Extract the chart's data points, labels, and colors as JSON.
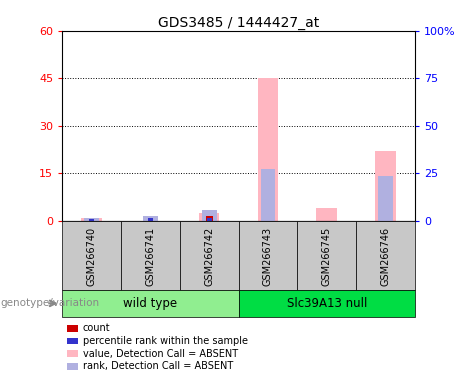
{
  "title": "GDS3485 / 1444427_at",
  "samples": [
    "GSM266740",
    "GSM266741",
    "GSM266742",
    "GSM266743",
    "GSM266745",
    "GSM266746"
  ],
  "group_labels": [
    "wild type",
    "Slc39A13 null"
  ],
  "group_colors": [
    "#90EE90",
    "#00DD44"
  ],
  "group_ranges": [
    [
      0,
      3
    ],
    [
      3,
      6
    ]
  ],
  "value_absent": [
    1.0,
    0.0,
    2.5,
    45.0,
    4.0,
    22.0
  ],
  "rank_absent": [
    1.0,
    1.5,
    3.5,
    16.5,
    0.0,
    14.0
  ],
  "count": [
    0.0,
    0.0,
    1.5,
    0.0,
    0.0,
    0.0
  ],
  "percentile": [
    0.5,
    1.0,
    1.0,
    0.0,
    0.0,
    0.0
  ],
  "left_ylim": [
    0,
    60
  ],
  "left_yticks": [
    0,
    15,
    30,
    45,
    60
  ],
  "right_ylim": [
    0,
    100
  ],
  "right_yticks": [
    0,
    25,
    50,
    75,
    100
  ],
  "color_count": "#cc0000",
  "color_percentile": "#3333cc",
  "color_value_absent": "#ffb6c1",
  "color_rank_absent": "#b0b0e0",
  "legend_items": [
    {
      "label": "count",
      "color": "#cc0000"
    },
    {
      "label": "percentile rank within the sample",
      "color": "#3333cc"
    },
    {
      "label": "value, Detection Call = ABSENT",
      "color": "#ffb6c1"
    },
    {
      "label": "rank, Detection Call = ABSENT",
      "color": "#b0b0e0"
    }
  ],
  "group_row_label": "genotype/variation",
  "sample_box_color": "#c8c8c8"
}
